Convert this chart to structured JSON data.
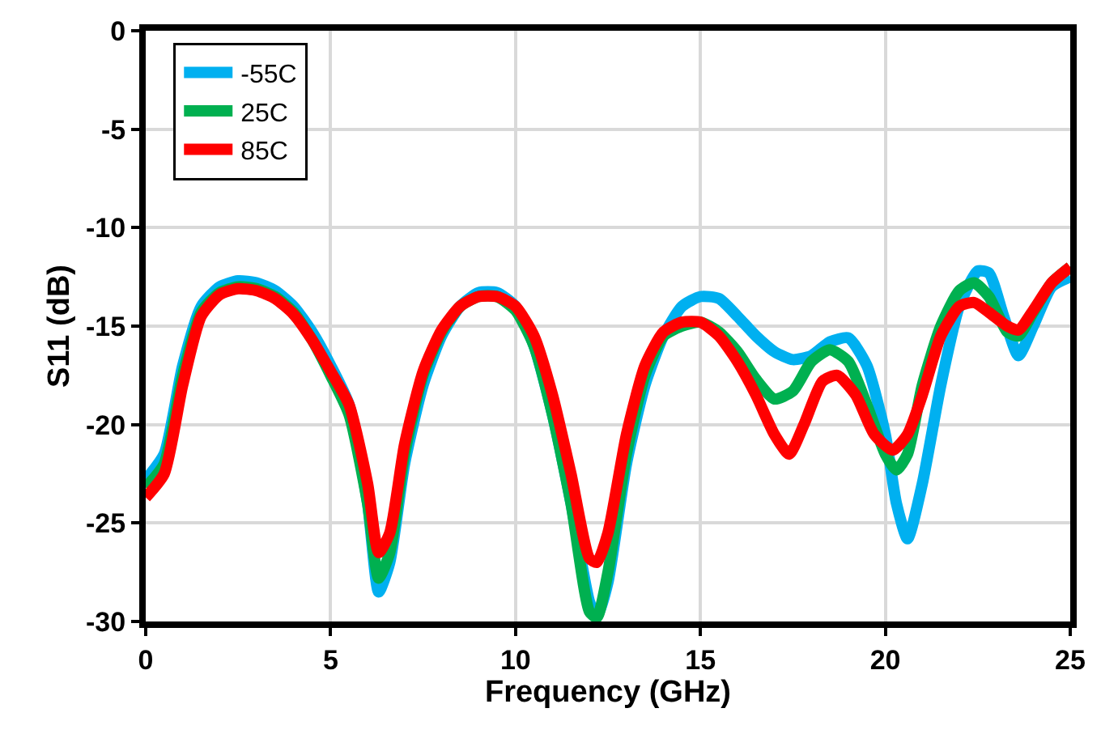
{
  "chart_data": {
    "type": "line",
    "xlabel": "Frequency (GHz)",
    "ylabel": "S11 (dB)",
    "xlim": [
      0,
      25
    ],
    "ylim": [
      -30,
      0
    ],
    "xticks": [
      0,
      5,
      10,
      15,
      20,
      25
    ],
    "yticks": [
      -30,
      -25,
      -20,
      -15,
      -10,
      -5,
      0
    ],
    "grid": true,
    "legend": "top left",
    "marker": "none",
    "line_style": "solid",
    "series": [
      {
        "name": "-55C",
        "color": "#00b0f0",
        "x": [
          0,
          0.5,
          1,
          1.5,
          2,
          2.5,
          3,
          3.5,
          4,
          4.5,
          5,
          5.5,
          6,
          6.3,
          6.6,
          7,
          7.5,
          8,
          8.5,
          9,
          9.5,
          10,
          10.5,
          11,
          11.5,
          12,
          12.2,
          12.5,
          13,
          13.5,
          14,
          14.5,
          15,
          15.5,
          16,
          16.5,
          17,
          17.5,
          18,
          18.5,
          19,
          19.5,
          20,
          20.3,
          20.6,
          21,
          21.5,
          22,
          22.5,
          22.8,
          23.2,
          23.6,
          24,
          24.5,
          25
        ],
        "values": [
          -22.8,
          -21.5,
          -17,
          -14,
          -13,
          -12.7,
          -12.8,
          -13.2,
          -14,
          -15.3,
          -17,
          -19,
          -24,
          -28.5,
          -27,
          -22,
          -18,
          -15.5,
          -14,
          -13.3,
          -13.3,
          -14,
          -16,
          -19.5,
          -24,
          -29,
          -29.8,
          -28,
          -22,
          -18,
          -15.5,
          -14,
          -13.5,
          -13.6,
          -14.5,
          -15.5,
          -16.3,
          -16.7,
          -16.5,
          -15.8,
          -15.6,
          -17,
          -20.5,
          -24,
          -25.8,
          -23,
          -18,
          -14,
          -12.2,
          -12.3,
          -14.5,
          -16.5,
          -15,
          -13,
          -12.5
        ]
      },
      {
        "name": "25C",
        "color": "#00b050",
        "x": [
          0,
          0.5,
          1,
          1.5,
          2,
          2.5,
          3,
          3.5,
          4,
          4.5,
          5,
          5.5,
          6,
          6.3,
          6.6,
          7,
          7.5,
          8,
          8.5,
          9,
          9.5,
          10,
          10.5,
          11,
          11.5,
          12,
          12.2,
          12.5,
          13,
          13.5,
          14,
          14.5,
          15,
          15.5,
          16,
          16.5,
          17,
          17.5,
          18,
          18.5,
          19,
          19.5,
          20,
          20.3,
          20.6,
          21,
          21.5,
          22,
          22.4,
          22.8,
          23.3,
          23.6,
          24,
          24.5,
          25
        ],
        "values": [
          -23.2,
          -22,
          -17.5,
          -14.3,
          -13.3,
          -13,
          -13.1,
          -13.5,
          -14.3,
          -15.7,
          -17.5,
          -19.5,
          -24,
          -27.8,
          -26.5,
          -21.5,
          -17.5,
          -15.3,
          -14,
          -13.5,
          -13.5,
          -14.2,
          -16,
          -19.5,
          -24,
          -29.5,
          -29.8,
          -27.5,
          -21.5,
          -17.5,
          -15.5,
          -15,
          -14.8,
          -15.3,
          -16.3,
          -17.7,
          -18.7,
          -18.3,
          -16.8,
          -16.2,
          -16.8,
          -19,
          -21.5,
          -22.3,
          -21.5,
          -18,
          -15,
          -13.2,
          -12.8,
          -13.5,
          -15.3,
          -15.5,
          -14.3,
          -12.8,
          -12
        ]
      },
      {
        "name": "85C",
        "color": "#ff0000",
        "x": [
          0,
          0.5,
          1,
          1.5,
          2,
          2.5,
          3,
          3.5,
          4,
          4.5,
          5,
          5.5,
          6,
          6.3,
          6.6,
          7,
          7.5,
          8,
          8.5,
          9,
          9.5,
          10,
          10.5,
          11,
          11.5,
          12,
          12.2,
          12.5,
          13,
          13.5,
          14,
          14.5,
          15,
          15.5,
          16,
          16.5,
          17,
          17.4,
          17.8,
          18.3,
          18.7,
          19.2,
          19.7,
          20.2,
          20.6,
          21,
          21.5,
          22,
          22.4,
          22.8,
          23.3,
          23.6,
          24,
          24.5,
          25
        ],
        "values": [
          -23.7,
          -22.5,
          -18,
          -14.5,
          -13.4,
          -13.1,
          -13.2,
          -13.6,
          -14.4,
          -15.7,
          -17.3,
          -19,
          -23,
          -26.5,
          -25.5,
          -21,
          -17.3,
          -15.2,
          -14,
          -13.5,
          -13.5,
          -14,
          -15.5,
          -18.5,
          -22.5,
          -26.8,
          -27,
          -25.5,
          -20.5,
          -17,
          -15.3,
          -14.8,
          -14.8,
          -15.5,
          -16.8,
          -18.5,
          -20.5,
          -21.5,
          -20,
          -17.8,
          -17.5,
          -18.5,
          -20.5,
          -21.3,
          -20.5,
          -18.5,
          -15.5,
          -14,
          -13.8,
          -14.3,
          -15,
          -15.2,
          -14.2,
          -12.8,
          -12
        ]
      }
    ]
  }
}
